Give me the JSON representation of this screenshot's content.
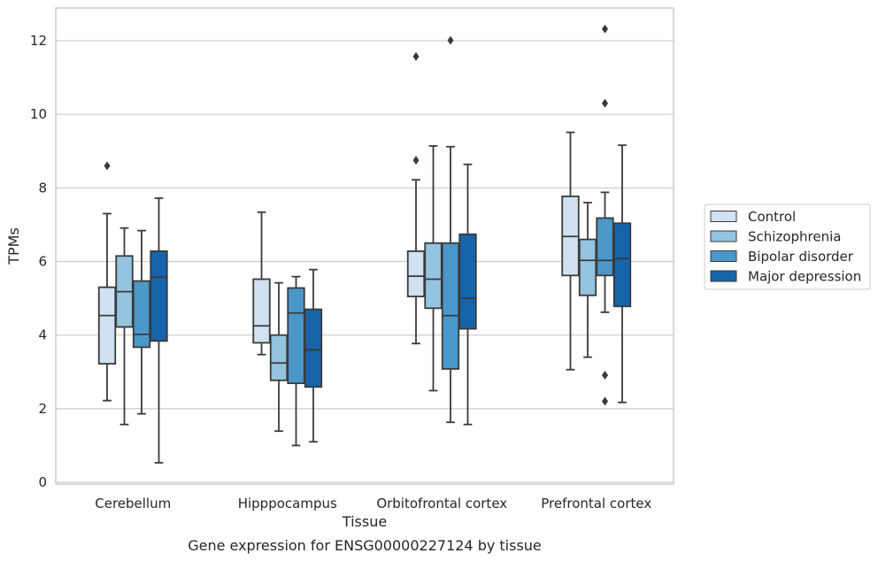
{
  "caption": "Gene expression for ENSG00000227124 by tissue",
  "chart_data": {
    "type": "box",
    "xlabel": "Tissue",
    "ylabel": "TPMs",
    "ylim": [
      -0.1,
      12.9
    ],
    "yticks": [
      0,
      2,
      4,
      6,
      8,
      10,
      12
    ],
    "grid": "horizontal",
    "legend_position": "right",
    "categories": [
      "Cerebellum",
      "Hipppocampus",
      "Orbitofrontal cortex",
      "Prefrontal cortex"
    ],
    "series": [
      {
        "name": "Control",
        "color": "#d0e1f2",
        "boxes": [
          {
            "whislo": 2.22,
            "q1": 3.22,
            "med": 4.53,
            "q3": 5.3,
            "whishi": 7.3,
            "fliers": [
              8.6
            ]
          },
          {
            "whislo": 3.47,
            "q1": 3.79,
            "med": 4.25,
            "q3": 5.52,
            "whishi": 7.34,
            "fliers": []
          },
          {
            "whislo": 3.77,
            "q1": 5.05,
            "med": 5.6,
            "q3": 6.28,
            "whishi": 8.22,
            "fliers": [
              8.75,
              11.57
            ]
          },
          {
            "whislo": 3.06,
            "q1": 5.62,
            "med": 6.68,
            "q3": 7.77,
            "whishi": 9.51,
            "fliers": []
          }
        ]
      },
      {
        "name": "Schizophrenia",
        "color": "#94c4df",
        "boxes": [
          {
            "whislo": 1.57,
            "q1": 4.22,
            "med": 5.18,
            "q3": 6.15,
            "whishi": 6.91,
            "fliers": []
          },
          {
            "whislo": 1.39,
            "q1": 2.77,
            "med": 3.24,
            "q3": 4.0,
            "whishi": 5.42,
            "fliers": []
          },
          {
            "whislo": 2.49,
            "q1": 4.73,
            "med": 5.52,
            "q3": 6.5,
            "whishi": 9.14,
            "fliers": []
          },
          {
            "whislo": 3.4,
            "q1": 5.08,
            "med": 6.03,
            "q3": 6.6,
            "whishi": 7.6,
            "fliers": []
          }
        ]
      },
      {
        "name": "Bipolar disorder",
        "color": "#4a98c9",
        "boxes": [
          {
            "whislo": 1.86,
            "q1": 3.67,
            "med": 4.02,
            "q3": 5.47,
            "whishi": 6.84,
            "fliers": []
          },
          {
            "whislo": 1.0,
            "q1": 2.69,
            "med": 4.6,
            "q3": 5.28,
            "whishi": 5.59,
            "fliers": []
          },
          {
            "whislo": 1.63,
            "q1": 3.08,
            "med": 4.53,
            "q3": 6.5,
            "whishi": 9.12,
            "fliers": [
              12.01
            ]
          },
          {
            "whislo": 4.62,
            "q1": 5.62,
            "med": 6.03,
            "q3": 7.18,
            "whishi": 7.88,
            "fliers": [
              2.91,
              2.2,
              10.3,
              12.32
            ]
          }
        ]
      },
      {
        "name": "Major depression",
        "color": "#1764ab",
        "boxes": [
          {
            "whislo": 0.53,
            "q1": 3.84,
            "med": 5.57,
            "q3": 6.28,
            "whishi": 7.72,
            "fliers": []
          },
          {
            "whislo": 1.1,
            "q1": 2.59,
            "med": 3.6,
            "q3": 4.7,
            "whishi": 5.78,
            "fliers": []
          },
          {
            "whislo": 1.57,
            "q1": 4.17,
            "med": 5.0,
            "q3": 6.74,
            "whishi": 8.64,
            "fliers": []
          },
          {
            "whislo": 2.17,
            "q1": 4.78,
            "med": 6.08,
            "q3": 7.04,
            "whishi": 9.16,
            "fliers": []
          }
        ]
      }
    ]
  }
}
